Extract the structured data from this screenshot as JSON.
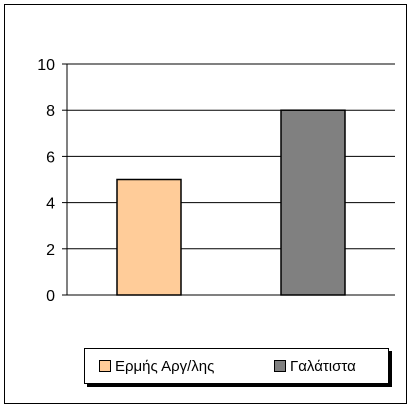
{
  "chart_data": {
    "type": "bar",
    "categories": [
      "Ερμής Αργ/λης",
      "Γαλάτιστα"
    ],
    "values": [
      5,
      8
    ],
    "ylim": [
      0,
      10
    ],
    "yticks": [
      0,
      2,
      4,
      6,
      8,
      10
    ],
    "colors": [
      "#FFCC99",
      "#808080"
    ],
    "grid": true,
    "legend_position": "bottom"
  }
}
